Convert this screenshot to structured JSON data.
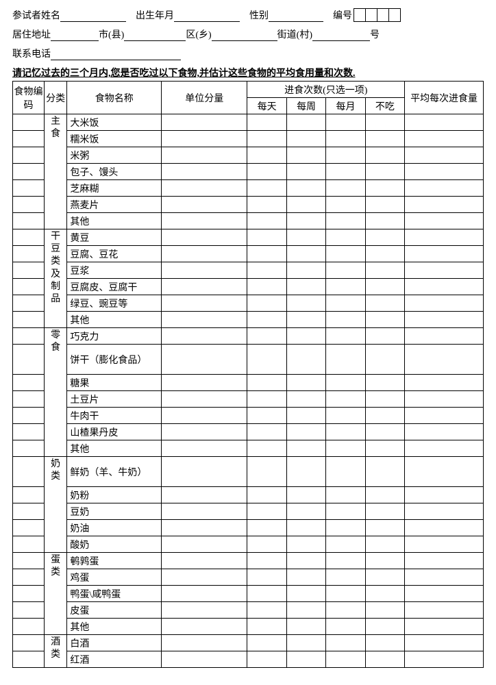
{
  "header": {
    "name_label": "参试者姓名",
    "birth_label": "出生年月",
    "gender_label": "性别",
    "id_label": "编号",
    "id_box_count": 4,
    "address_label": "居住地址",
    "city_suffix": "市(县)",
    "district_suffix": "区(乡)",
    "street_suffix": "街道(村)",
    "number_suffix": "号",
    "phone_label": "联系电话"
  },
  "instruction": "请记忆过去的三个月内,您是否吃过以下食物,并估计这些食物的平均食用量和次数.",
  "table": {
    "head": {
      "code": "食物编码",
      "category": "分类",
      "name": "食物名称",
      "unit": "单位分量",
      "freq_group": "进食次数(只选一项)",
      "freq": [
        "每天",
        "每周",
        "每月",
        "不吃"
      ],
      "avg": "平均每次进食量"
    },
    "groups": [
      {
        "category": "主食",
        "items": [
          "大米饭",
          "糯米饭",
          "米粥",
          "包子、馒头",
          "芝麻糊",
          "燕麦片",
          "其他"
        ]
      },
      {
        "category": "干豆类及制品",
        "items": [
          "黄豆",
          "豆腐、豆花",
          "豆浆",
          "豆腐皮、豆腐干",
          "绿豆、豌豆等",
          "其他"
        ]
      },
      {
        "category": "零食",
        "items": [
          "巧克力",
          "饼干（膨化食品）",
          "糖果",
          "土豆片",
          "牛肉干",
          "山楂果丹皮",
          "其他"
        ],
        "tall_row_index": 1
      },
      {
        "category": "奶类",
        "items": [
          "鲜奶（羊、牛奶）",
          "奶粉",
          "豆奶",
          "奶油",
          "酸奶"
        ],
        "tall_row_index": 0
      },
      {
        "category": "蛋类",
        "items": [
          "鹌鹑蛋",
          "鸡蛋",
          "鸭蛋\\咸鸭蛋",
          "皮蛋",
          "其他"
        ]
      },
      {
        "category": "酒类",
        "items": [
          "白酒",
          "红酒"
        ]
      }
    ]
  }
}
